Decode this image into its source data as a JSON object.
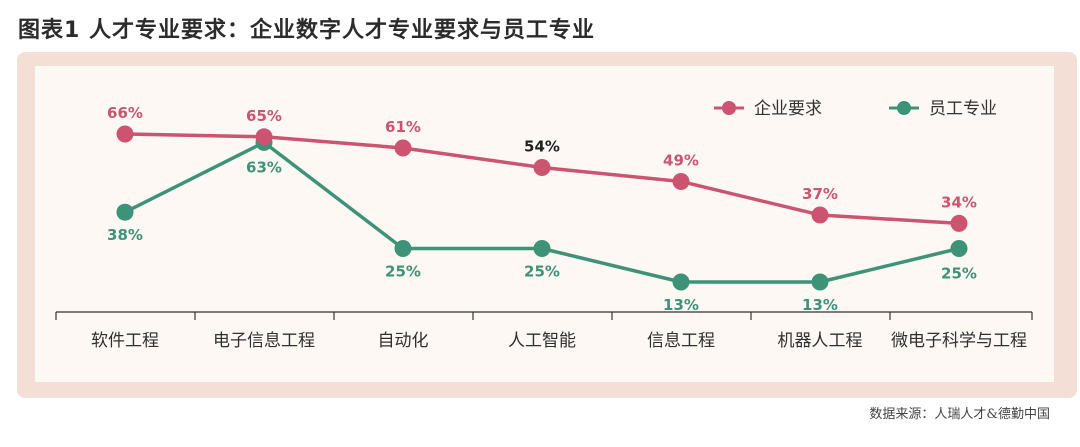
{
  "figure": {
    "title": "图表1  人才专业要求：企业数字人才专业要求与员工专业",
    "source": "数据来源：人瑞人才&德勤中国"
  },
  "colors": {
    "enterprise": "#cc5470",
    "employee": "#3e9277",
    "panel_bg": "#f3dfd5",
    "plot_bg": "#fdf8f4"
  },
  "chart_data": {
    "type": "line",
    "categories": [
      "软件工程",
      "电子信息工程",
      "自动化",
      "人工智能",
      "信息工程",
      "机器人工程",
      "微电子科学与工程"
    ],
    "series": [
      {
        "name": "企业要求",
        "values": [
          66,
          65,
          61,
          54,
          49,
          37,
          34
        ],
        "labels": [
          "66%",
          "65%",
          "61%",
          "54%",
          "49%",
          "37%",
          "34%"
        ]
      },
      {
        "name": "员工专业",
        "values": [
          38,
          63,
          25,
          25,
          13,
          13,
          25
        ],
        "labels": [
          "38%",
          "63%",
          "25%",
          "25%",
          "13%",
          "13%",
          "25%"
        ]
      }
    ],
    "legend_position": "top-right",
    "grid": false
  }
}
